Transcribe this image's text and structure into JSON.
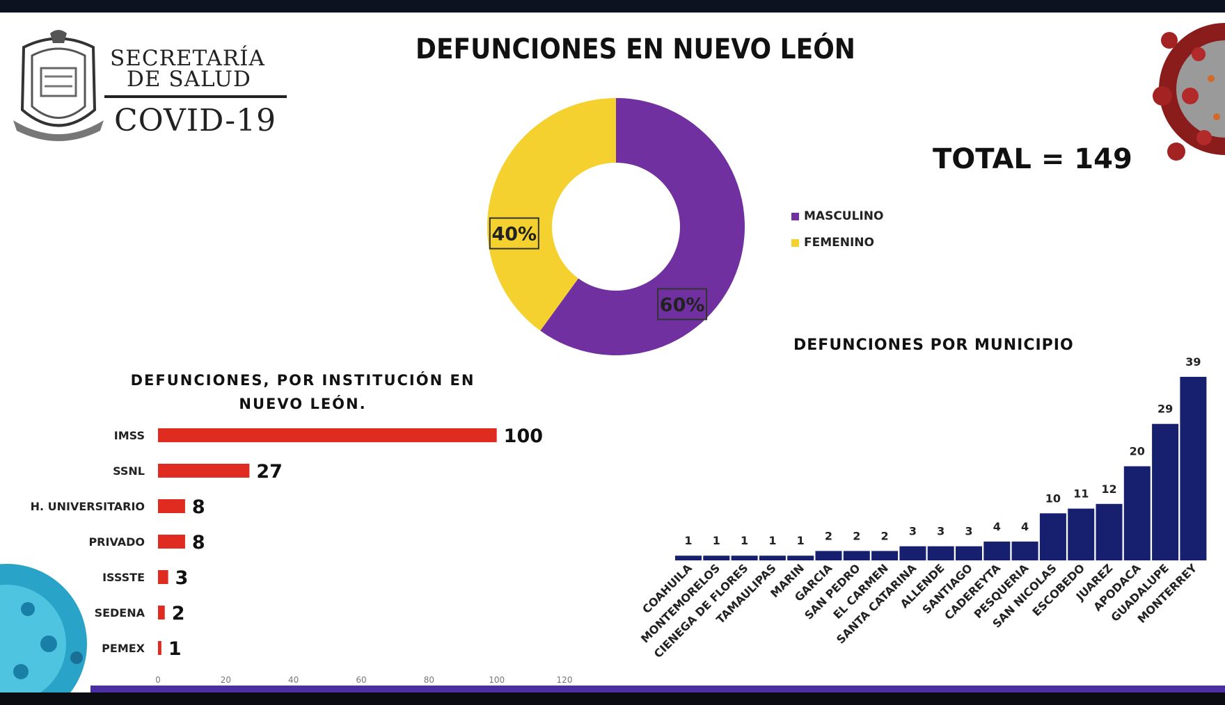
{
  "header": {
    "logo_line1": "SECRETARÍA",
    "logo_line2": "DE SALUD",
    "logo_line3": "COVID-19",
    "title": "DEFUNCIONES EN NUEVO LEÓN",
    "total": "TOTAL = 149"
  },
  "colors": {
    "masculino": "#7030a0",
    "femenino": "#f5d130",
    "institution_bar": "#e02b20",
    "municipio_bar": "#16206e",
    "accent_stripe": "#4b2fa0"
  },
  "icons": [
    "state-seal-icon",
    "virus-icon"
  ],
  "chart_data": [
    {
      "type": "pie",
      "labels": [
        "MASCULINO",
        "FEMENINO"
      ],
      "values": [
        60,
        40
      ],
      "data_labels": [
        "60%",
        "40%"
      ],
      "legend_position": "right"
    },
    {
      "type": "bar",
      "orientation": "horizontal",
      "title": "DEFUNCIONES, POR INSTITUCIÓN EN NUEVO LEÓN.",
      "categories": [
        "IMSS",
        "SSNL",
        "H. UNIVERSITARIO",
        "PRIVADO",
        "ISSSTE",
        "SEDENA",
        "PEMEX"
      ],
      "values": [
        100,
        27,
        8,
        8,
        3,
        2,
        1
      ],
      "xlim": [
        0,
        120
      ],
      "xticks": [
        0,
        20,
        40,
        60,
        80,
        100,
        120
      ],
      "grid": false
    },
    {
      "type": "bar",
      "orientation": "vertical",
      "title": "DEFUNCIONES POR MUNICIPIO",
      "categories": [
        "COAHUILA",
        "MONTEMORELOS",
        "CIENEGA DE FLORES",
        "TAMAULIPAS",
        "MARIN",
        "GARCIA",
        "SAN PEDRO",
        "EL CARMEN",
        "SANTA CATARINA",
        "ALLENDE",
        "SANTIAGO",
        "CADEREYTA",
        "PESQUERIA",
        "SAN NICOLAS",
        "ESCOBEDO",
        "JUAREZ",
        "APODACA",
        "GUADALUPE",
        "MONTERREY"
      ],
      "values": [
        1,
        1,
        1,
        1,
        1,
        2,
        2,
        2,
        3,
        3,
        3,
        4,
        4,
        10,
        11,
        12,
        20,
        29,
        39
      ],
      "grid": false
    }
  ]
}
